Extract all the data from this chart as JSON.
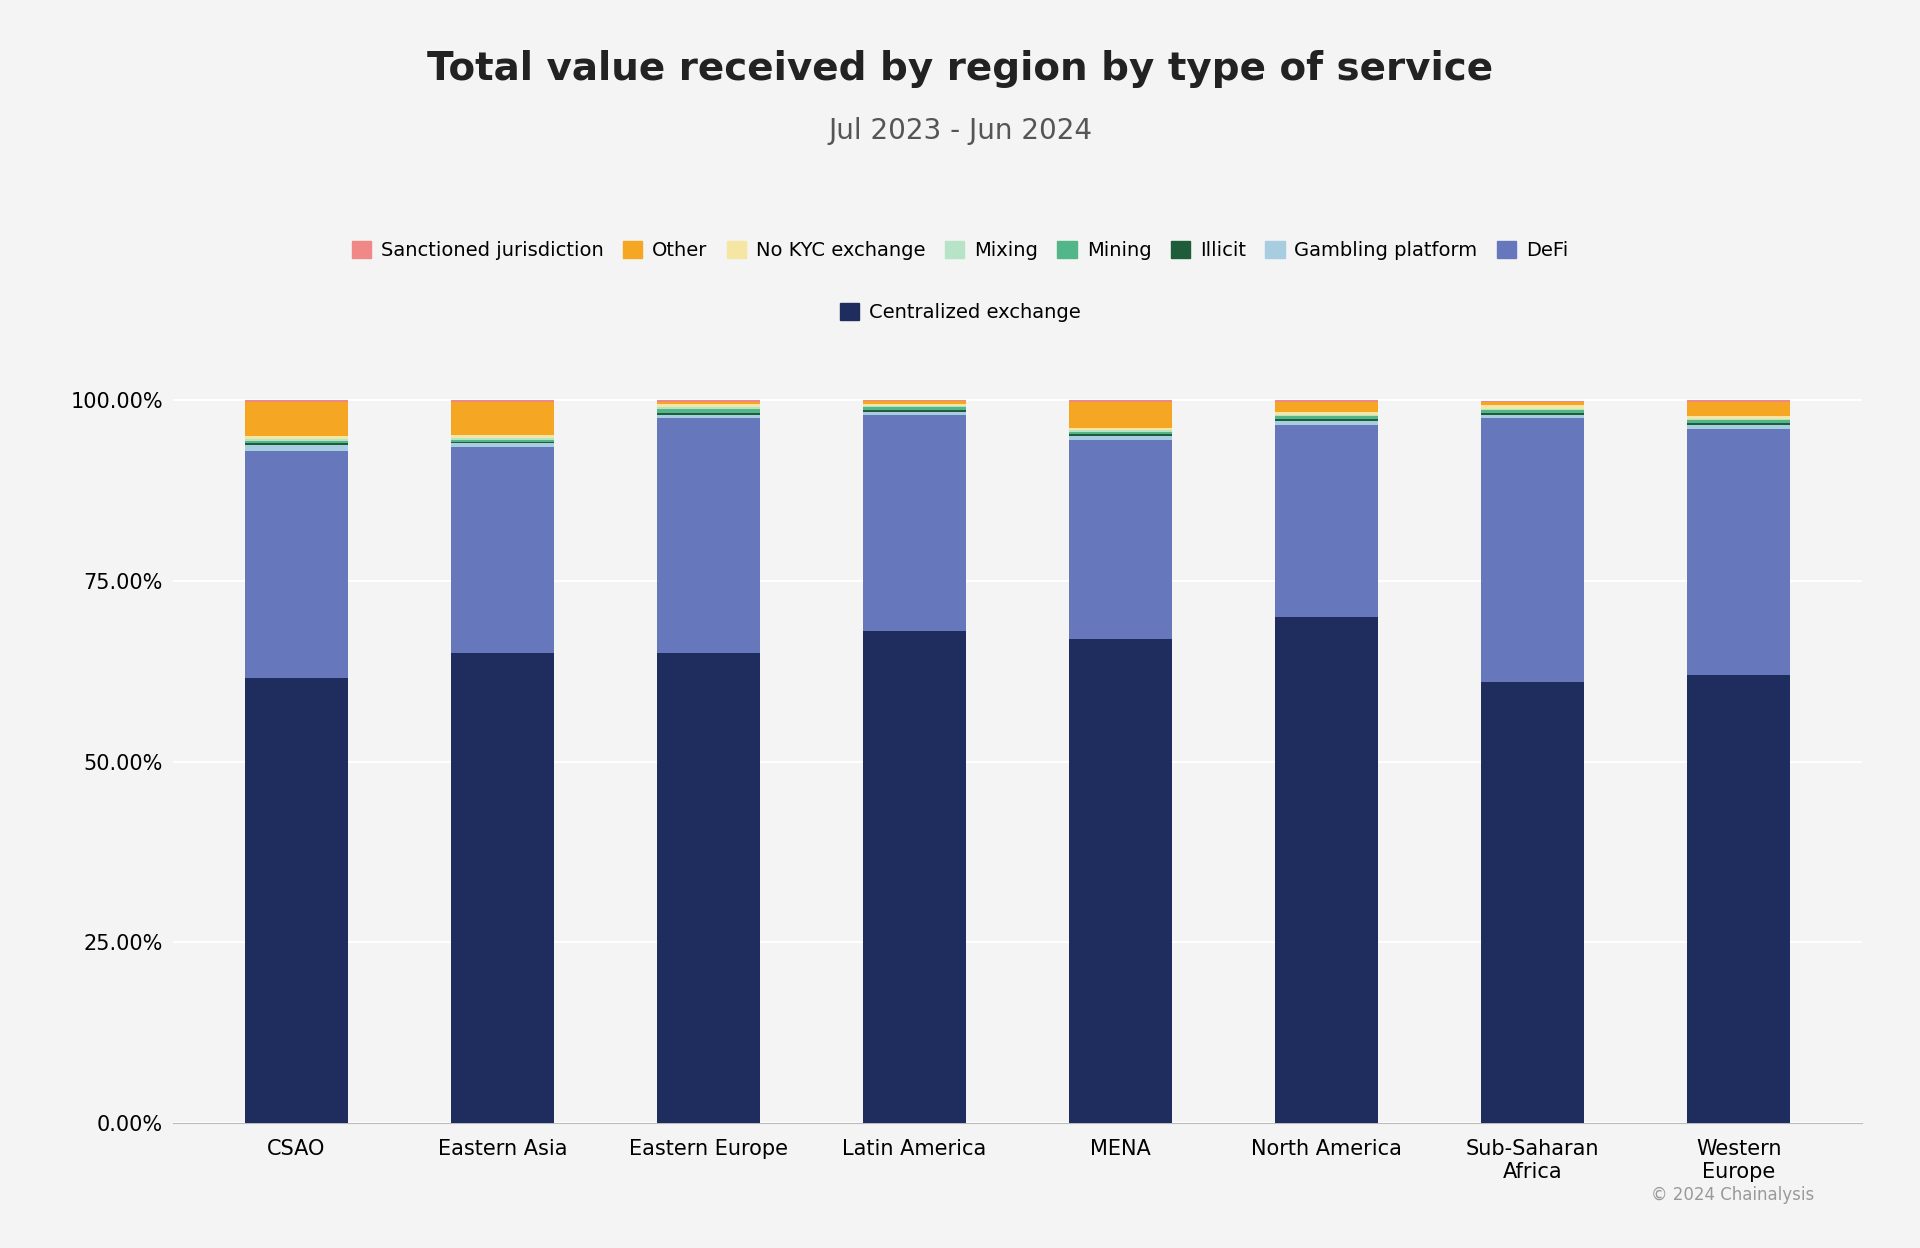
{
  "title": "Total value received by region by type of service",
  "subtitle": "Jul 2023 - Jun 2024",
  "regions": [
    "CSAO",
    "Eastern Asia",
    "Eastern Europe",
    "Latin America",
    "MENA",
    "North America",
    "Sub-Saharan\nAfrica",
    "Western\nEurope"
  ],
  "colors": {
    "Centralized exchange": "#1e2d5e",
    "DeFi": "#6677bb",
    "Gambling platform": "#a8cce0",
    "Illicit": "#1e5c3a",
    "Mining": "#52b788",
    "Mixing": "#b7e4c7",
    "No KYC exchange": "#f5e6a3",
    "Other": "#f5a623",
    "Sanctioned jurisdiction": "#f08888"
  },
  "data": {
    "Centralized exchange": [
      61.5,
      65.0,
      65.0,
      68.0,
      67.0,
      70.0,
      61.0,
      62.0
    ],
    "DeFi": [
      31.5,
      28.5,
      32.5,
      30.0,
      27.5,
      26.5,
      36.5,
      34.0
    ],
    "Gambling platform": [
      0.8,
      0.5,
      0.5,
      0.4,
      0.5,
      0.6,
      0.4,
      0.5
    ],
    "Illicit": [
      0.3,
      0.2,
      0.2,
      0.2,
      0.3,
      0.3,
      0.3,
      0.3
    ],
    "Mining": [
      0.3,
      0.3,
      0.5,
      0.4,
      0.3,
      0.4,
      0.4,
      0.4
    ],
    "Mixing": [
      0.2,
      0.2,
      0.3,
      0.2,
      0.2,
      0.2,
      0.2,
      0.2
    ],
    "No KYC exchange": [
      0.4,
      0.5,
      0.5,
      0.3,
      0.4,
      0.4,
      0.5,
      0.4
    ],
    "Other": [
      4.7,
      4.5,
      0.3,
      0.4,
      3.6,
      1.4,
      0.4,
      2.0
    ],
    "Sanctioned jurisdiction": [
      0.3,
      0.3,
      0.2,
      0.1,
      0.2,
      0.2,
      0.2,
      0.2
    ]
  },
  "legend_row1": [
    "Sanctioned jurisdiction",
    "Other",
    "No KYC exchange",
    "Mixing",
    "Mining",
    "Illicit",
    "Gambling platform",
    "DeFi"
  ],
  "legend_row2": [
    "Centralized exchange"
  ],
  "background_color": "#f4f4f4",
  "yticks": [
    0,
    25,
    50,
    75,
    100
  ],
  "ytick_labels": [
    "0.00%",
    "25.00%",
    "50.00%",
    "75.00%",
    "100.00%"
  ],
  "copyright": "© 2024 Chainalysis",
  "bar_width": 0.5,
  "title_fontsize": 28,
  "subtitle_fontsize": 20,
  "tick_fontsize": 15,
  "legend_fontsize": 14
}
